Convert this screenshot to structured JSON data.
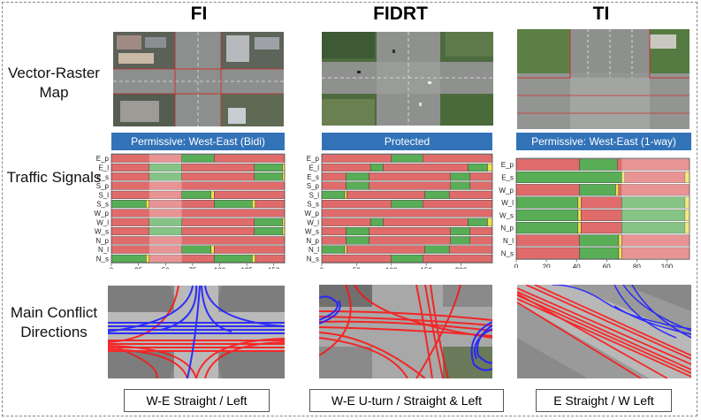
{
  "columns": [
    {
      "title": "FI",
      "banner": "Permissive: West-East (Bidi)",
      "caption": "W-E Straight / Left"
    },
    {
      "title": "FIDRT",
      "banner": "Protected",
      "caption": "W-E U-turn / Straight & Left"
    },
    {
      "title": "TI",
      "banner": "Permissive: West-East (1-way)",
      "caption": "E  Straight / W Left"
    }
  ],
  "rows": {
    "map": "Vector-Raster Map",
    "signals": "Traffic Signals",
    "conflicts": "Main Conflict Directions"
  },
  "colors": {
    "red": "#e06b6b",
    "green": "#58ad56",
    "yellow": "#f0e050",
    "banner": "#3273b8"
  },
  "chart_data": [
    {
      "type": "timeline",
      "title": "Permissive: West-East (Bidi)",
      "xlim": [
        0,
        160
      ],
      "xticks": [
        0,
        25,
        50,
        75,
        100,
        125,
        150
      ],
      "highlight": [
        35,
        65
      ],
      "phases": [
        {
          "name": "E_p",
          "segments": [
            [
              "r",
              0,
              65
            ],
            [
              "g",
              65,
              95
            ],
            [
              "r",
              95,
              160
            ]
          ]
        },
        {
          "name": "E_l",
          "segments": [
            [
              "r",
              0,
              35
            ],
            [
              "g",
              35,
              65
            ],
            [
              "r",
              65,
              132
            ],
            [
              "g",
              132,
              158
            ],
            [
              "y",
              158,
              160
            ]
          ]
        },
        {
          "name": "E_s",
          "segments": [
            [
              "r",
              0,
              35
            ],
            [
              "g",
              35,
              65
            ],
            [
              "r",
              65,
              132
            ],
            [
              "g",
              132,
              158
            ],
            [
              "y",
              158,
              160
            ]
          ]
        },
        {
          "name": "S_p",
          "segments": [
            [
              "r",
              0,
              160
            ]
          ]
        },
        {
          "name": "S_l",
          "segments": [
            [
              "r",
              0,
              65
            ],
            [
              "g",
              65,
              92
            ],
            [
              "y",
              92,
              95
            ],
            [
              "r",
              95,
              160
            ]
          ]
        },
        {
          "name": "S_s",
          "segments": [
            [
              "g",
              0,
              32
            ],
            [
              "y",
              32,
              35
            ],
            [
              "r",
              35,
              95
            ],
            [
              "g",
              95,
              130
            ],
            [
              "y",
              130,
              133
            ],
            [
              "r",
              133,
              160
            ]
          ]
        },
        {
          "name": "W_p",
          "segments": [
            [
              "r",
              0,
              160
            ]
          ]
        },
        {
          "name": "W_l",
          "segments": [
            [
              "r",
              0,
              35
            ],
            [
              "g",
              35,
              65
            ],
            [
              "r",
              65,
              132
            ],
            [
              "g",
              132,
              158
            ],
            [
              "y",
              158,
              160
            ]
          ]
        },
        {
          "name": "W_s",
          "segments": [
            [
              "r",
              0,
              35
            ],
            [
              "g",
              35,
              65
            ],
            [
              "r",
              65,
              132
            ],
            [
              "g",
              132,
              158
            ],
            [
              "y",
              158,
              160
            ]
          ]
        },
        {
          "name": "N_p",
          "segments": [
            [
              "r",
              0,
              160
            ]
          ]
        },
        {
          "name": "N_l",
          "segments": [
            [
              "r",
              0,
              65
            ],
            [
              "g",
              65,
              92
            ],
            [
              "y",
              92,
              95
            ],
            [
              "r",
              95,
              160
            ]
          ]
        },
        {
          "name": "N_s",
          "segments": [
            [
              "g",
              0,
              32
            ],
            [
              "y",
              32,
              35
            ],
            [
              "r",
              35,
              95
            ],
            [
              "g",
              95,
              130
            ],
            [
              "y",
              130,
              133
            ],
            [
              "r",
              133,
              160
            ]
          ]
        }
      ]
    },
    {
      "type": "timeline",
      "title": "Protected",
      "xlim": [
        0,
        245
      ],
      "xticks": [
        0,
        50,
        100,
        150,
        200
      ],
      "phases": [
        {
          "name": "E_p",
          "segments": [
            [
              "r",
              0,
              100
            ],
            [
              "g",
              100,
              145
            ],
            [
              "r",
              145,
              245
            ]
          ]
        },
        {
          "name": "E_l",
          "segments": [
            [
              "r",
              0,
              70
            ],
            [
              "g",
              70,
              88
            ],
            [
              "r",
              88,
              210
            ],
            [
              "g",
              210,
              238
            ],
            [
              "y",
              238,
              245
            ]
          ]
        },
        {
          "name": "E_s",
          "segments": [
            [
              "r",
              0,
              35
            ],
            [
              "g",
              35,
              68
            ],
            [
              "r",
              68,
              185
            ],
            [
              "g",
              185,
              213
            ],
            [
              "r",
              213,
              245
            ]
          ]
        },
        {
          "name": "S_p",
          "segments": [
            [
              "r",
              0,
              35
            ],
            [
              "g",
              35,
              68
            ],
            [
              "r",
              68,
              185
            ],
            [
              "g",
              185,
              213
            ],
            [
              "r",
              213,
              245
            ]
          ]
        },
        {
          "name": "S_l",
          "segments": [
            [
              "g",
              0,
              33
            ],
            [
              "y",
              33,
              36
            ],
            [
              "r",
              36,
              148
            ],
            [
              "g",
              148,
              183
            ],
            [
              "r",
              183,
              245
            ]
          ]
        },
        {
          "name": "S_s",
          "segments": [
            [
              "r",
              0,
              100
            ],
            [
              "g",
              100,
              145
            ],
            [
              "r",
              145,
              245
            ]
          ]
        },
        {
          "name": "W_p",
          "segments": [
            [
              "r",
              0,
              245
            ]
          ]
        },
        {
          "name": "W_l",
          "segments": [
            [
              "r",
              0,
              70
            ],
            [
              "g",
              70,
              88
            ],
            [
              "r",
              88,
              210
            ],
            [
              "g",
              210,
              238
            ],
            [
              "y",
              238,
              245
            ]
          ]
        },
        {
          "name": "W_s",
          "segments": [
            [
              "r",
              0,
              35
            ],
            [
              "g",
              35,
              68
            ],
            [
              "r",
              68,
              185
            ],
            [
              "g",
              185,
              213
            ],
            [
              "r",
              213,
              245
            ]
          ]
        },
        {
          "name": "N_p",
          "segments": [
            [
              "r",
              0,
              35
            ],
            [
              "g",
              35,
              68
            ],
            [
              "r",
              68,
              185
            ],
            [
              "g",
              185,
              213
            ],
            [
              "r",
              213,
              245
            ]
          ]
        },
        {
          "name": "N_l",
          "segments": [
            [
              "g",
              0,
              33
            ],
            [
              "y",
              33,
              36
            ],
            [
              "r",
              36,
              148
            ],
            [
              "g",
              148,
              183
            ],
            [
              "r",
              183,
              245
            ]
          ]
        },
        {
          "name": "N_s",
          "segments": [
            [
              "r",
              0,
              100
            ],
            [
              "g",
              100,
              145
            ],
            [
              "r",
              145,
              245
            ]
          ]
        }
      ]
    },
    {
      "type": "timeline",
      "title": "Permissive: West-East (1-way)",
      "xlim": [
        0,
        115
      ],
      "xticks": [
        0,
        20,
        40,
        60,
        80,
        100
      ],
      "highlight": [
        70,
        115
      ],
      "phases": [
        {
          "name": "E_p",
          "segments": [
            [
              "r",
              0,
              42
            ],
            [
              "g",
              42,
              67
            ],
            [
              "r",
              67,
              115
            ]
          ]
        },
        {
          "name": "E_s",
          "segments": [
            [
              "g",
              0,
              70
            ],
            [
              "y",
              70,
              72
            ],
            [
              "r",
              72,
              112
            ],
            [
              "y",
              112,
              115
            ]
          ]
        },
        {
          "name": "W_p",
          "segments": [
            [
              "r",
              0,
              42
            ],
            [
              "g",
              42,
              66
            ],
            [
              "y",
              66,
              68
            ],
            [
              "r",
              68,
              115
            ]
          ]
        },
        {
          "name": "W_l",
          "segments": [
            [
              "g",
              0,
              41
            ],
            [
              "y",
              41,
              43
            ],
            [
              "r",
              43,
              70
            ],
            [
              "g",
              70,
              112
            ],
            [
              "y",
              112,
              115
            ]
          ]
        },
        {
          "name": "W_s",
          "segments": [
            [
              "g",
              0,
              41
            ],
            [
              "y",
              41,
              43
            ],
            [
              "r",
              43,
              70
            ],
            [
              "g",
              70,
              112
            ],
            [
              "y",
              112,
              115
            ]
          ]
        },
        {
          "name": "N_p",
          "segments": [
            [
              "g",
              0,
              41
            ],
            [
              "y",
              41,
              43
            ],
            [
              "r",
              43,
              70
            ],
            [
              "g",
              70,
              112
            ],
            [
              "y",
              112,
              115
            ]
          ]
        },
        {
          "name": "N_l",
          "segments": [
            [
              "r",
              0,
              42
            ],
            [
              "g",
              42,
              68
            ],
            [
              "y",
              68,
              70
            ],
            [
              "r",
              70,
              115
            ]
          ]
        },
        {
          "name": "N_s",
          "segments": [
            [
              "r",
              0,
              42
            ],
            [
              "g",
              42,
              68
            ],
            [
              "y",
              68,
              70
            ],
            [
              "r",
              70,
              115
            ]
          ]
        }
      ]
    }
  ]
}
